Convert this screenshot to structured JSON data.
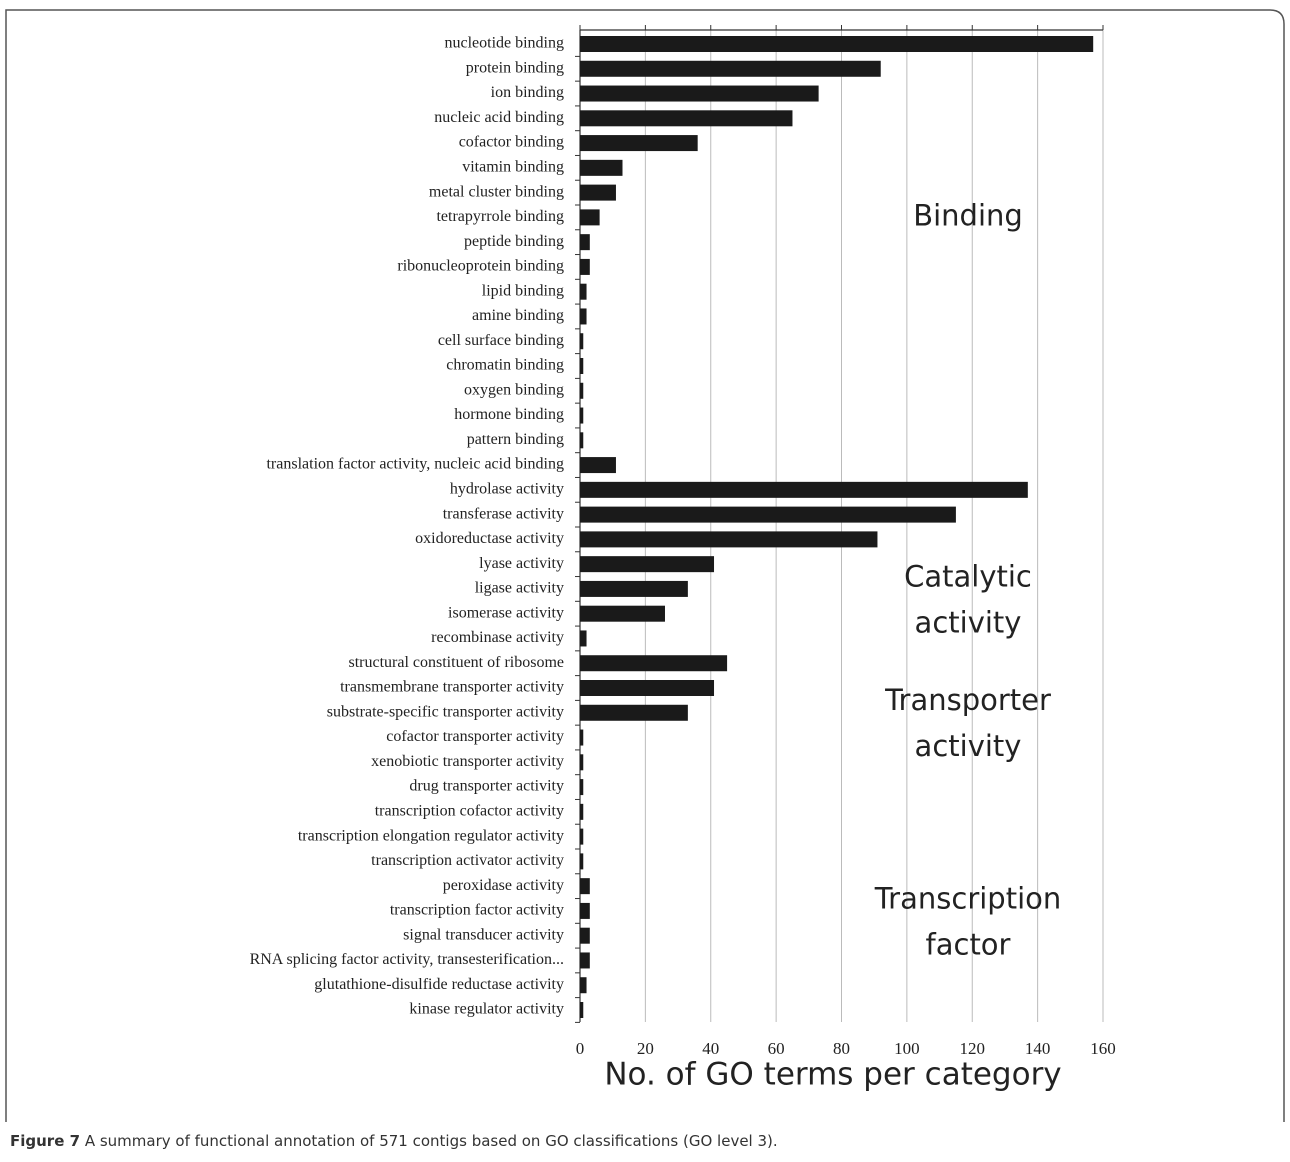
{
  "chart_data": {
    "type": "bar",
    "orientation": "horizontal",
    "categories": [
      "nucleotide binding",
      "protein binding",
      "ion binding",
      "nucleic acid binding",
      "cofactor binding",
      "vitamin binding",
      "metal cluster binding",
      "tetrapyrrole binding",
      "peptide binding",
      "ribonucleoprotein binding",
      "lipid binding",
      "amine binding",
      "cell surface binding",
      "chromatin binding",
      "oxygen binding",
      "hormone binding",
      "pattern binding",
      "translation factor activity, nucleic acid binding",
      "hydrolase activity",
      "transferase activity",
      "oxidoreductase activity",
      "lyase activity",
      "ligase activity",
      "isomerase activity",
      "recombinase activity",
      "structural constituent of ribosome",
      "transmembrane transporter activity",
      "substrate-specific transporter activity",
      "cofactor transporter activity",
      "xenobiotic transporter activity",
      "drug transporter activity",
      "transcription cofactor activity",
      "transcription elongation regulator activity",
      "transcription activator activity",
      "peroxidase activity",
      "transcription factor activity",
      "signal transducer activity",
      "RNA splicing factor activity, transesterification...",
      "glutathione-disulfide reductase activity",
      "kinase regulator activity"
    ],
    "values": [
      157,
      92,
      73,
      65,
      36,
      13,
      11,
      6,
      3,
      3,
      2,
      2,
      1,
      1,
      1,
      1,
      1,
      11,
      137,
      115,
      91,
      41,
      33,
      26,
      2,
      45,
      41,
      33,
      1,
      1,
      1,
      1,
      1,
      1,
      3,
      3,
      3,
      3,
      2,
      1
    ],
    "color": "#1a1a1a",
    "xlim": [
      0,
      160
    ],
    "xticks": [
      0,
      20,
      40,
      60,
      80,
      100,
      120,
      140,
      160
    ],
    "grid": true,
    "xlabel": "No. of GO terms per category",
    "annotations": [
      {
        "lines": [
          "Binding"
        ],
        "row": 7
      },
      {
        "lines": [
          "Catalytic",
          "activity"
        ],
        "row": 22.5
      },
      {
        "lines": [
          "Transporter",
          "activity"
        ],
        "row": 27.5
      },
      {
        "lines": [
          "Transcription",
          "factor"
        ],
        "row": 35.5
      }
    ]
  },
  "caption": {
    "label": "Figure 7",
    "text": "A summary of functional annotation of 571 contigs based on GO classifications (GO level 3)."
  }
}
